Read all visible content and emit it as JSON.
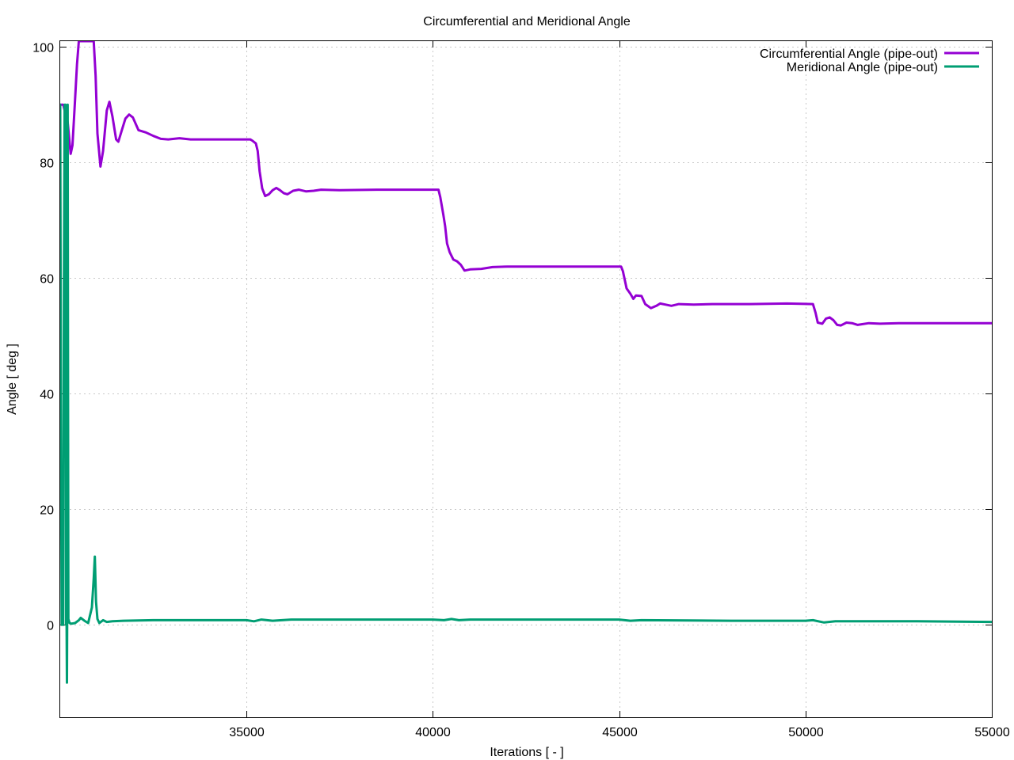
{
  "chart_data": {
    "type": "line",
    "title": "Circumferential and Meridional Angle",
    "xlabel": "Iterations [ - ]",
    "ylabel": "Angle [ deg ]",
    "xlim": [
      30000,
      55000
    ],
    "ylim": [
      -16,
      101
    ],
    "xticks": [
      35000,
      40000,
      45000,
      50000,
      55000
    ],
    "yticks": [
      0,
      20,
      40,
      60,
      80,
      100
    ],
    "grid": true,
    "legend_position": "top-right",
    "series": [
      {
        "name": "Circumferential Angle (pipe-out)",
        "color": "#9400d3",
        "points": [
          [
            30000,
            90
          ],
          [
            30080,
            90
          ],
          [
            30120,
            89
          ],
          [
            30200,
            87
          ],
          [
            30280,
            81.5
          ],
          [
            30330,
            83
          ],
          [
            30400,
            91
          ],
          [
            30450,
            97
          ],
          [
            30500,
            101
          ],
          [
            30900,
            101
          ],
          [
            30950,
            95
          ],
          [
            31000,
            85
          ],
          [
            31080,
            79.3
          ],
          [
            31150,
            82
          ],
          [
            31250,
            89
          ],
          [
            31320,
            90.5
          ],
          [
            31400,
            88
          ],
          [
            31500,
            84
          ],
          [
            31560,
            83.6
          ],
          [
            31650,
            85.5
          ],
          [
            31750,
            87.6
          ],
          [
            31850,
            88.3
          ],
          [
            31950,
            87.8
          ],
          [
            32100,
            85.6
          ],
          [
            32300,
            85.2
          ],
          [
            32500,
            84.6
          ],
          [
            32700,
            84.1
          ],
          [
            32900,
            84.0
          ],
          [
            33200,
            84.2
          ],
          [
            33500,
            84.0
          ],
          [
            34000,
            84.0
          ],
          [
            34500,
            84.0
          ],
          [
            35100,
            84.0
          ],
          [
            35150,
            83.8
          ],
          [
            35250,
            83.3
          ],
          [
            35300,
            82.0
          ],
          [
            35350,
            78.5
          ],
          [
            35420,
            75.5
          ],
          [
            35500,
            74.2
          ],
          [
            35600,
            74.5
          ],
          [
            35700,
            75.2
          ],
          [
            35800,
            75.6
          ],
          [
            35900,
            75.2
          ],
          [
            36000,
            74.7
          ],
          [
            36100,
            74.5
          ],
          [
            36250,
            75.1
          ],
          [
            36400,
            75.3
          ],
          [
            36600,
            75.0
          ],
          [
            36800,
            75.1
          ],
          [
            37000,
            75.3
          ],
          [
            37500,
            75.2
          ],
          [
            38500,
            75.3
          ],
          [
            39500,
            75.3
          ],
          [
            40150,
            75.3
          ],
          [
            40200,
            74.0
          ],
          [
            40280,
            71.0
          ],
          [
            40330,
            69.0
          ],
          [
            40380,
            66.0
          ],
          [
            40450,
            64.5
          ],
          [
            40550,
            63.2
          ],
          [
            40650,
            62.9
          ],
          [
            40750,
            62.3
          ],
          [
            40850,
            61.3
          ],
          [
            41000,
            61.5
          ],
          [
            41300,
            61.6
          ],
          [
            41600,
            61.9
          ],
          [
            42000,
            62.0
          ],
          [
            43000,
            62.0
          ],
          [
            44000,
            62.0
          ],
          [
            45050,
            62.0
          ],
          [
            45100,
            61.2
          ],
          [
            45200,
            58.2
          ],
          [
            45300,
            57.3
          ],
          [
            45380,
            56.4
          ],
          [
            45450,
            57.0
          ],
          [
            45600,
            56.9
          ],
          [
            45700,
            55.5
          ],
          [
            45850,
            54.8
          ],
          [
            46000,
            55.2
          ],
          [
            46100,
            55.6
          ],
          [
            46250,
            55.4
          ],
          [
            46400,
            55.2
          ],
          [
            46600,
            55.5
          ],
          [
            47000,
            55.4
          ],
          [
            47500,
            55.5
          ],
          [
            48500,
            55.5
          ],
          [
            49500,
            55.6
          ],
          [
            50200,
            55.5
          ],
          [
            50270,
            54.0
          ],
          [
            50330,
            52.3
          ],
          [
            50450,
            52.1
          ],
          [
            50550,
            53.0
          ],
          [
            50650,
            53.2
          ],
          [
            50750,
            52.7
          ],
          [
            50850,
            51.9
          ],
          [
            50950,
            51.8
          ],
          [
            51100,
            52.3
          ],
          [
            51250,
            52.2
          ],
          [
            51400,
            51.9
          ],
          [
            51700,
            52.2
          ],
          [
            52000,
            52.1
          ],
          [
            52500,
            52.2
          ],
          [
            53500,
            52.2
          ],
          [
            54500,
            52.2
          ],
          [
            55000,
            52.2
          ]
        ]
      },
      {
        "name": "Meridional Angle (pipe-out)",
        "color": "#009e73",
        "points": [
          [
            30000,
            90
          ],
          [
            30020,
            40
          ],
          [
            30040,
            0
          ],
          [
            30060,
            4
          ],
          [
            30080,
            0
          ],
          [
            30100,
            60
          ],
          [
            30120,
            90
          ],
          [
            30140,
            90
          ],
          [
            30150,
            45
          ],
          [
            30160,
            0
          ],
          [
            30170,
            2
          ],
          [
            30180,
            -10
          ],
          [
            30190,
            4
          ],
          [
            30200,
            90
          ],
          [
            30210,
            40
          ],
          [
            30220,
            1
          ],
          [
            30250,
            0.3
          ],
          [
            30300,
            0.2
          ],
          [
            30400,
            0.3
          ],
          [
            30500,
            0.8
          ],
          [
            30550,
            1.2
          ],
          [
            30650,
            0.7
          ],
          [
            30750,
            0.3
          ],
          [
            30850,
            3
          ],
          [
            30900,
            8
          ],
          [
            30930,
            11.8
          ],
          [
            30960,
            4
          ],
          [
            31000,
            1.0
          ],
          [
            31050,
            0.3
          ],
          [
            31150,
            0.8
          ],
          [
            31250,
            0.5
          ],
          [
            31400,
            0.6
          ],
          [
            31700,
            0.7
          ],
          [
            32500,
            0.8
          ],
          [
            33500,
            0.8
          ],
          [
            35000,
            0.8
          ],
          [
            35200,
            0.6
          ],
          [
            35400,
            0.9
          ],
          [
            35700,
            0.7
          ],
          [
            36200,
            0.9
          ],
          [
            38000,
            0.9
          ],
          [
            40000,
            0.9
          ],
          [
            40300,
            0.8
          ],
          [
            40500,
            1.0
          ],
          [
            40700,
            0.8
          ],
          [
            41000,
            0.9
          ],
          [
            43000,
            0.9
          ],
          [
            45000,
            0.9
          ],
          [
            45300,
            0.7
          ],
          [
            45600,
            0.8
          ],
          [
            48000,
            0.7
          ],
          [
            50000,
            0.7
          ],
          [
            50200,
            0.8
          ],
          [
            50500,
            0.4
          ],
          [
            50800,
            0.6
          ],
          [
            53000,
            0.6
          ],
          [
            55000,
            0.5
          ]
        ]
      }
    ]
  }
}
